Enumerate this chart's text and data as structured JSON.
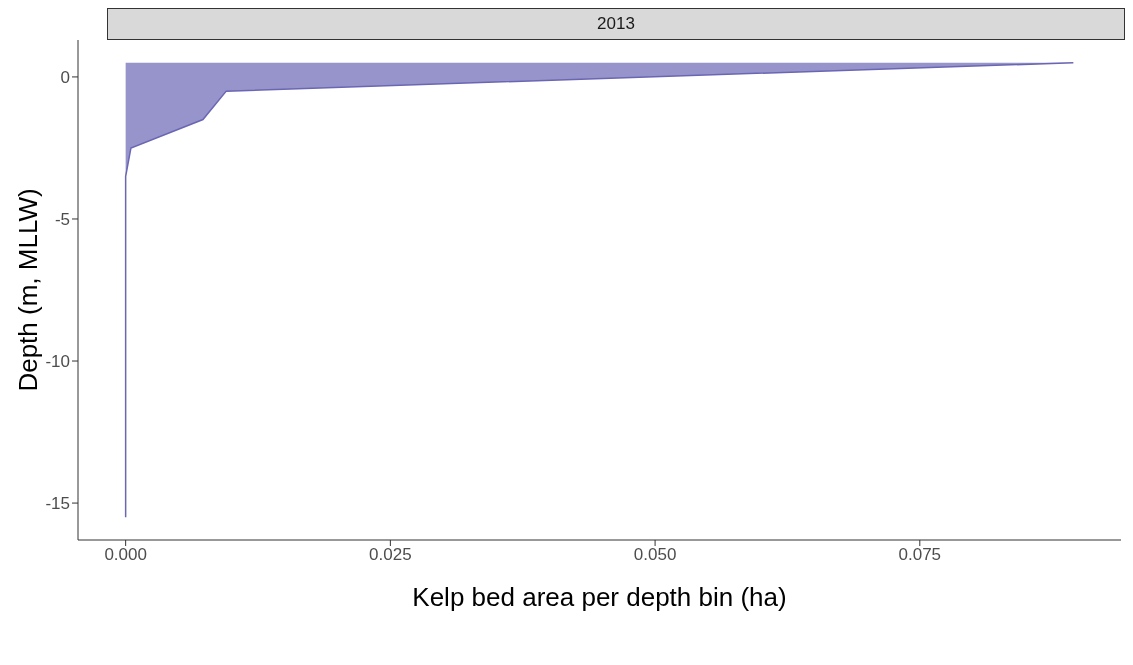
{
  "chart_data": {
    "type": "area",
    "title": "2013",
    "xlabel": "Kelp bed area per depth bin (ha)",
    "ylabel": "Depth (m, MLLW)",
    "orientation": "horizontal",
    "x": [
      0.5,
      -0.5,
      -1.5,
      -2.5,
      -3.5,
      -4.5,
      -5.5,
      -6.5,
      -7.5,
      -8.5,
      -9.5,
      -10.5,
      -11.5,
      -12.5,
      -13.5,
      -14.5,
      -15.5
    ],
    "series": [
      {
        "color": "#6a66b3",
        "values": [
          0.0895,
          0.0095,
          0.0073,
          0.0005,
          0,
          0,
          0,
          0,
          0,
          0,
          0,
          0,
          0,
          0,
          0,
          0,
          0
        ]
      }
    ],
    "xlim": [
      -0.0045,
      0.094
    ],
    "xticks": [
      {
        "value": 0,
        "label": "0.000"
      },
      {
        "value": 0.025,
        "label": "0.025"
      },
      {
        "value": 0.05,
        "label": "0.050"
      },
      {
        "value": 0.075,
        "label": "0.075"
      }
    ],
    "ylim": [
      -16.3,
      1.3
    ],
    "yticks": [
      0,
      -5,
      -10,
      -15
    ]
  }
}
